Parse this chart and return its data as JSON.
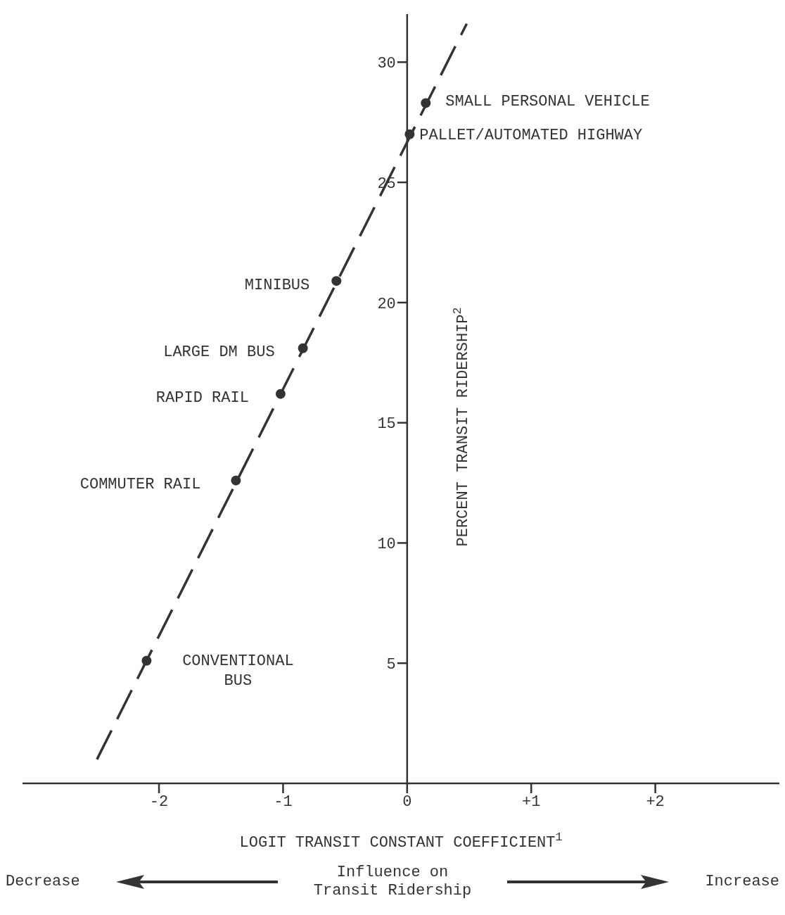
{
  "chart_data": {
    "type": "scatter",
    "xlabel": "LOGIT TRANSIT CONSTANT COEFFICIENT$^{1}$",
    "ylabel": "PERCENT TRANSIT RIDERSHIP$^{2}$",
    "xlim": [
      -3.1,
      3.0
    ],
    "xticks": [
      -2,
      -1,
      0,
      {
        "value": 1,
        "label": "+1"
      },
      {
        "value": 2,
        "label": "+2"
      }
    ],
    "ylim": [
      0,
      32
    ],
    "yticks": [
      5,
      10,
      15,
      20,
      25,
      30
    ],
    "series": [
      {
        "x": [
          0.15,
          0.02,
          -0.57,
          -0.84,
          -1.02,
          -1.38,
          -2.1
        ],
        "values": [
          28.3,
          27.0,
          20.9,
          18.1,
          16.2,
          12.6,
          5.1
        ],
        "color": "#333333",
        "marker": "circle"
      },
      {
        "type": "line",
        "x": [
          -2.5,
          0.48
        ],
        "values": [
          1.0,
          31.6
        ],
        "color": "#333333",
        "line_style": "dashed",
        "marker": "none"
      }
    ],
    "annotations": [
      {
        "text": "SMALL PERSONAL VEHICLE",
        "x": 0.15,
        "y": 28.3
      },
      {
        "text": "PALLET/AUTOMATED HIGHWAY",
        "x": 0.02,
        "y": 27.0
      },
      {
        "text": "MINIBUS",
        "x": -0.57,
        "y": 20.9
      },
      {
        "text": "LARGE DM BUS",
        "x": -0.84,
        "y": 18.1
      },
      {
        "text": "RAPID RAIL",
        "x": -1.02,
        "y": 16.2
      },
      {
        "text": "COMMUTER RAIL",
        "x": -1.38,
        "y": 12.6
      },
      {
        "text": "CONVENTIONAL\nBUS",
        "x": -2.1,
        "y": 5.1
      },
      "Decrease",
      "Influence on\nTransit Ridership",
      "Increase"
    ]
  }
}
